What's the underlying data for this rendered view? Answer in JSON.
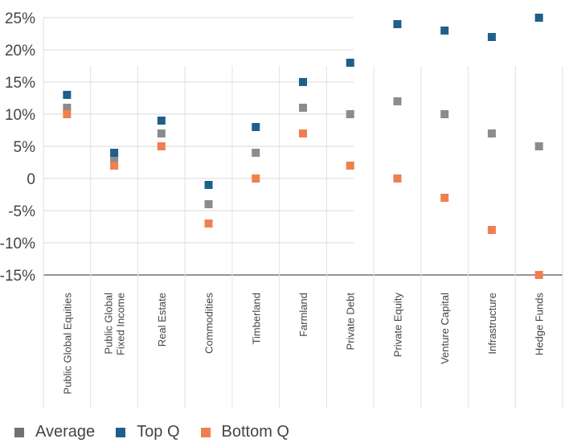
{
  "chart_data": {
    "type": "scatter",
    "title": "",
    "xlabel": "",
    "ylabel": "",
    "ylim": [
      -15,
      25
    ],
    "y_ticks": [
      "25%",
      "20%",
      "15%",
      "10%",
      "5%",
      "0",
      "-5%",
      "-10%",
      "-15%"
    ],
    "y_tick_values": [
      25,
      20,
      15,
      10,
      5,
      0,
      -5,
      -10,
      -15
    ],
    "categories": [
      [
        "Public Global Equities"
      ],
      [
        "Public Global",
        "Fixed Income"
      ],
      [
        "Real Estate"
      ],
      [
        "Commodities"
      ],
      [
        "Timberland"
      ],
      [
        "Farmland"
      ],
      [
        "Private Debt"
      ],
      [
        "Private Equity"
      ],
      [
        "Venture Capital"
      ],
      [
        "Infrastructure"
      ],
      [
        "Hedge Funds"
      ]
    ],
    "series": [
      {
        "name": "Average",
        "color": "#8c8c8c",
        "values": [
          11,
          3,
          7,
          -4,
          4,
          11,
          10,
          12,
          10,
          7,
          5
        ]
      },
      {
        "name": "Top Q",
        "color": "#1f5f8b",
        "values": [
          13,
          4,
          9,
          -1,
          8,
          15,
          18,
          24,
          23,
          22,
          25
        ]
      },
      {
        "name": "Bottom Q",
        "color": "#f07f4f",
        "values": [
          10,
          2,
          5,
          -7,
          0,
          7,
          2,
          0,
          -3,
          -8,
          -15
        ]
      }
    ],
    "legend": {
      "placement": "bottom-left",
      "items": [
        {
          "label": "Average",
          "color": "#707070"
        },
        {
          "label": "Top Q",
          "color": "#1f5f8b"
        },
        {
          "label": "Bottom Q",
          "color": "#f07f4f"
        }
      ]
    },
    "grid": true
  }
}
